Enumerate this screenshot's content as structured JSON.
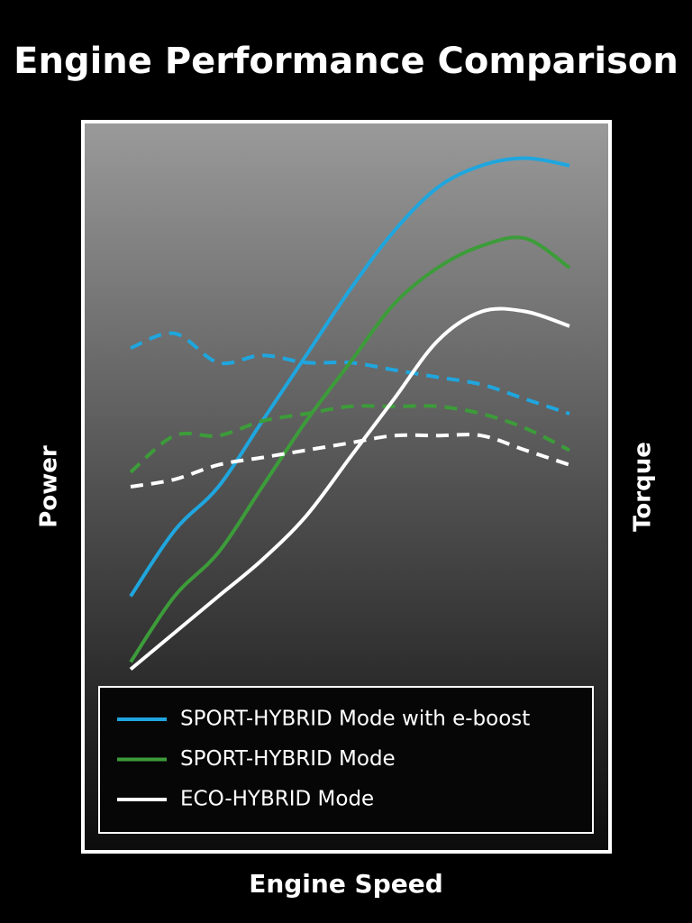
{
  "chart_data": {
    "type": "line",
    "title": "Engine Performance Comparison",
    "x_label": "Engine Speed",
    "y_label": "Power",
    "y2_label": "Torque",
    "categories": [
      null,
      null,
      null,
      null,
      null,
      null,
      null,
      null,
      null,
      null,
      null
    ],
    "ylim": [
      0,
      100
    ],
    "y2lim": [
      0,
      100
    ],
    "series": [
      {
        "name": "SPORT-HYBRID Mode with e-boost",
        "color": "#1fa6de",
        "values": [
          35,
          44,
          50,
          59,
          68,
          77,
          85,
          91,
          94,
          95,
          94
        ],
        "torque": [
          69,
          71,
          67,
          68,
          67,
          67,
          66,
          65,
          64,
          62,
          60
        ]
      },
      {
        "name": "SPORT-HYBRID Mode",
        "color": "#3d9c3a",
        "values": [
          26,
          35,
          41,
          50,
          59,
          67,
          75,
          80,
          83,
          84,
          80
        ],
        "torque": [
          52,
          57,
          57,
          59,
          60,
          61,
          61,
          61,
          60,
          58,
          55
        ]
      },
      {
        "name": "ECO-HYBRID Mode",
        "color": "#ffffff",
        "values": [
          25,
          30,
          35,
          40,
          46,
          54,
          62,
          70,
          74,
          74,
          72
        ],
        "torque": [
          50,
          51,
          53,
          54,
          55,
          56,
          57,
          57,
          57,
          55,
          53
        ]
      }
    ]
  }
}
